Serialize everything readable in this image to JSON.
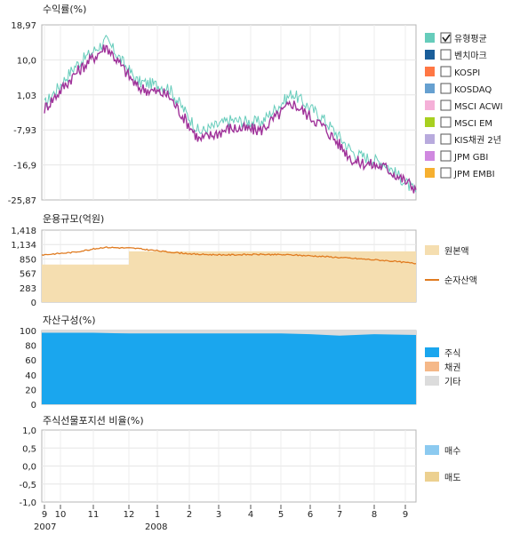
{
  "chart_data": [
    {
      "type": "line",
      "title": "수익률(%)",
      "y_ticks": [
        "18,97",
        "10,0",
        "1,03",
        "-7,93",
        "-16,9",
        "-25,87"
      ],
      "ylim": [
        -25.87,
        18.97
      ],
      "x": [
        "2007-09",
        "2007-10",
        "2007-11",
        "2007-12",
        "2008-01",
        "2008-02",
        "2008-03",
        "2008-04",
        "2008-05",
        "2008-06",
        "2008-07",
        "2008-08",
        "2008-09"
      ],
      "series": [
        {
          "name": "유형평균",
          "color": "#66ccbb",
          "values": [
            -1.5,
            8.5,
            15.0,
            4.5,
            3.0,
            -8.5,
            -5.5,
            -6.0,
            1.5,
            -5.0,
            -14.0,
            -16.5,
            -24.0
          ]
        },
        {
          "name": "",
          "color": "#a0339a",
          "values": [
            -2.5,
            6.5,
            13.5,
            3.0,
            1.0,
            -10.5,
            -7.5,
            -8.0,
            -1.0,
            -7.0,
            -16.0,
            -17.5,
            -23.0
          ]
        }
      ],
      "legend": [
        {
          "name": "유형평균",
          "color": "#66ccbb",
          "checked": true
        },
        {
          "name": "벤치마크",
          "color": "#1a5e9a",
          "checked": false
        },
        {
          "name": "KOSPI",
          "color": "#ff7744",
          "checked": false
        },
        {
          "name": "KOSDAQ",
          "color": "#66a0d0",
          "checked": false
        },
        {
          "name": "MSCI ACWI",
          "color": "#f5b0d8",
          "checked": false
        },
        {
          "name": "MSCI EM",
          "color": "#a8d020",
          "checked": false
        },
        {
          "name": "KIS채권 2년",
          "color": "#b8aadd",
          "checked": false
        },
        {
          "name": "JPM GBI",
          "color": "#d088e0",
          "checked": false
        },
        {
          "name": "JPM EMBI",
          "color": "#f6b030",
          "checked": false
        }
      ],
      "legend_position": "right"
    },
    {
      "type": "area",
      "title": "운용규모(억원)",
      "y_ticks": [
        "1,418",
        "1,134",
        "850",
        "567",
        "283",
        "0"
      ],
      "ylim": [
        0,
        1418
      ],
      "x": [
        "2007-09",
        "2007-10",
        "2007-11",
        "2007-12",
        "2008-01",
        "2008-02",
        "2008-03",
        "2008-04",
        "2008-05",
        "2008-06",
        "2008-07",
        "2008-08",
        "2008-09"
      ],
      "series": [
        {
          "name": "원본액",
          "color": "#f5deb0",
          "values": [
            740,
            740,
            740,
            1000,
            1000,
            1000,
            1000,
            1000,
            1000,
            1000,
            1000,
            1000,
            1000
          ]
        },
        {
          "name": "순자산액",
          "color": "#e07b20",
          "values": [
            930,
            980,
            1080,
            1060,
            990,
            940,
            930,
            940,
            930,
            900,
            860,
            820,
            760
          ]
        }
      ],
      "legend_position": "right"
    },
    {
      "type": "area",
      "title": "자산구성(%)",
      "y_ticks": [
        "100",
        "80",
        "60",
        "40",
        "20",
        "0"
      ],
      "ylim": [
        0,
        100
      ],
      "x": [
        "2007-09",
        "2007-10",
        "2007-11",
        "2007-12",
        "2008-01",
        "2008-02",
        "2008-03",
        "2008-04",
        "2008-05",
        "2008-06",
        "2008-07",
        "2008-08",
        "2008-09"
      ],
      "series": [
        {
          "name": "주식",
          "color": "#1aa6ee",
          "values": [
            97,
            97,
            97,
            96,
            96,
            96,
            96,
            96,
            96,
            95,
            93,
            95,
            94
          ]
        },
        {
          "name": "채권",
          "color": "#f5b888",
          "values": [
            0,
            0,
            0,
            0,
            0,
            0,
            0,
            0,
            0,
            0,
            0,
            0,
            0
          ]
        },
        {
          "name": "기타",
          "color": "#dcdcdc",
          "values": [
            3,
            3,
            3,
            4,
            4,
            4,
            4,
            4,
            4,
            5,
            7,
            5,
            6
          ]
        }
      ],
      "legend_position": "right"
    },
    {
      "type": "bar",
      "title": "주식선물포지션 비율(%)",
      "y_ticks": [
        "1,0",
        "0,5",
        "0,0",
        "-0,5",
        "-1,0"
      ],
      "ylim": [
        -1,
        1
      ],
      "series": [
        {
          "name": "매수",
          "color": "#8ccaf0"
        },
        {
          "name": "매도",
          "color": "#ecd090"
        }
      ],
      "legend_position": "right"
    }
  ],
  "x_axis": {
    "months": [
      "9",
      "10",
      "11",
      "12",
      "1",
      "2",
      "3",
      "4",
      "5",
      "6",
      "7",
      "8",
      "9"
    ],
    "years": [
      "2007",
      "2008"
    ]
  }
}
